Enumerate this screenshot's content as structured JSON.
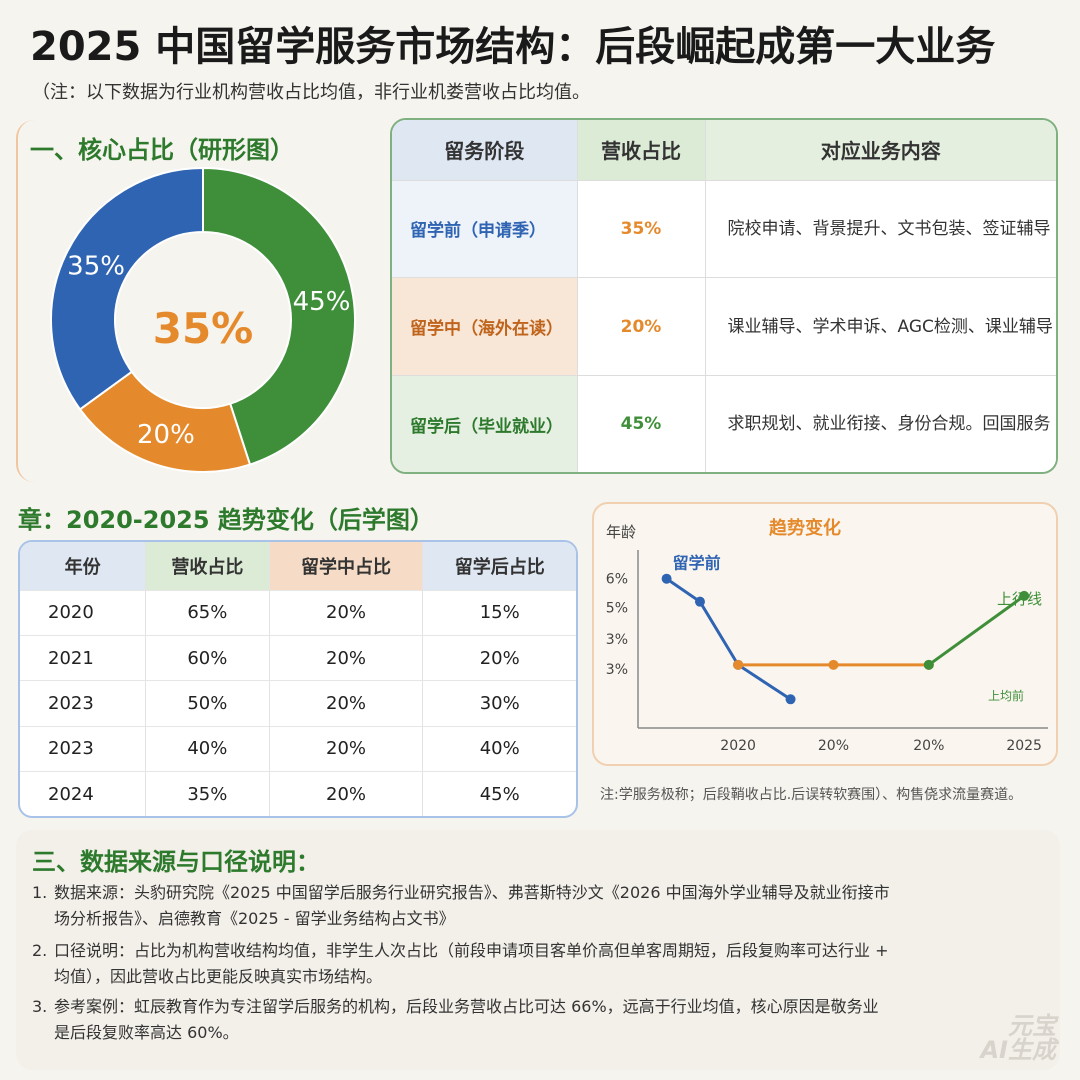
{
  "title": "2025 中国留学服务市场结构：后段崛起成第一大业务",
  "note": "（注：以下数据为行业机构营收占比均值，非行业机娄营收占比均值。",
  "section1": {
    "title": "一、核心占比（研形图）",
    "donut_center": "35%"
  },
  "colors": {
    "blue": "#2f64b3",
    "green": "#3f8f3a",
    "orange": "#e58a2c"
  },
  "stage_table": {
    "headers": [
      "留务阶段",
      "营收占比",
      "对应业务内容"
    ],
    "rows": [
      {
        "stage": "留学前（申请季）",
        "pct": "35%",
        "content": "院校申请、背景提升、文书包装、签证辅导"
      },
      {
        "stage": "留学中（海外在读）",
        "pct": "20%",
        "content": "课业辅导、学术申诉、AGC检测、课业辅导"
      },
      {
        "stage": "留学后（毕业就业）",
        "pct": "45%",
        "content": "求职规划、就业衔接、身份合规。回国服务"
      }
    ]
  },
  "section2": {
    "title": "章：2020-2025 趋势变化（后学图）",
    "table": {
      "headers": [
        "年份",
        "营收占比",
        "留学中占比",
        "留学后占比"
      ],
      "rows": [
        [
          "2020",
          "65%",
          "20%",
          "15%"
        ],
        [
          "2021",
          "60%",
          "20%",
          "20%"
        ],
        [
          "2023",
          "50%",
          "20%",
          "30%"
        ],
        [
          "2023",
          "40%",
          "20%",
          "40%"
        ],
        [
          "2024",
          "35%",
          "20%",
          "45%"
        ]
      ]
    }
  },
  "chart_data": [
    {
      "type": "pie",
      "categories": [
        "留学前",
        "留学中",
        "留学后"
      ],
      "values": [
        35,
        20,
        45
      ],
      "labels": [
        "35%",
        "20%",
        "45%"
      ],
      "colors": [
        "#2f64b3",
        "#e58a2c",
        "#3f8f3a"
      ]
    },
    {
      "type": "line",
      "title": "趋势变化",
      "ylabel": "年龄",
      "x_ticks": [
        "2020",
        "20%",
        "20%",
        "2025"
      ],
      "y_ticks": [
        "6%",
        "5%",
        "3%",
        "3%"
      ],
      "series": [
        {
          "name": "留学前",
          "color": "#2f64b3",
          "x": [
            0,
            0.35,
            0.75,
            1.3
          ],
          "y": [
            6,
            5.2,
            3,
            1.8
          ]
        },
        {
          "name": "",
          "color": "#e58a2c",
          "x": [
            0.75,
            1.75,
            2.75
          ],
          "y": [
            3,
            3,
            3
          ]
        },
        {
          "name": "上行线",
          "color": "#3f8f3a",
          "x": [
            2.75,
            3.75
          ],
          "y": [
            3,
            5.4
          ]
        }
      ],
      "annotations": [
        "上行线",
        "上均前"
      ]
    }
  ],
  "chart_note": "注:学服务极称；后段鞘收占比.后误转软赛围）、构售侥求流量赛道。",
  "section3": {
    "title": "三、数据来源与口径说明：",
    "items": [
      {
        "num": "1.",
        "text": "数据来源：头豹研究院《2025 中国留学后服务行业研究报告》、弗菩斯特沙文《2026 中国海外学业辅导及就业衔接市场分析报告》、启德教育《2025 - 留学业务结构占文书》"
      },
      {
        "num": "2.",
        "text": "口径说明：占比为机构营收结构均值，非学生人次占比（前段申请项目客单价高但单客周期短，后段复购率可达行业 + 均值），因此营收占比更能反映真实市场结构。"
      },
      {
        "num": "3.",
        "text": "参考案例：虹辰教育作为专注留学后服务的机构，后段业务营收占比可达 66%，远高于行业均值，核心原因是敬务业是后段复败率高达 60%。"
      }
    ]
  },
  "watermark": {
    "line1": "元宝",
    "line2": "AI生成"
  }
}
